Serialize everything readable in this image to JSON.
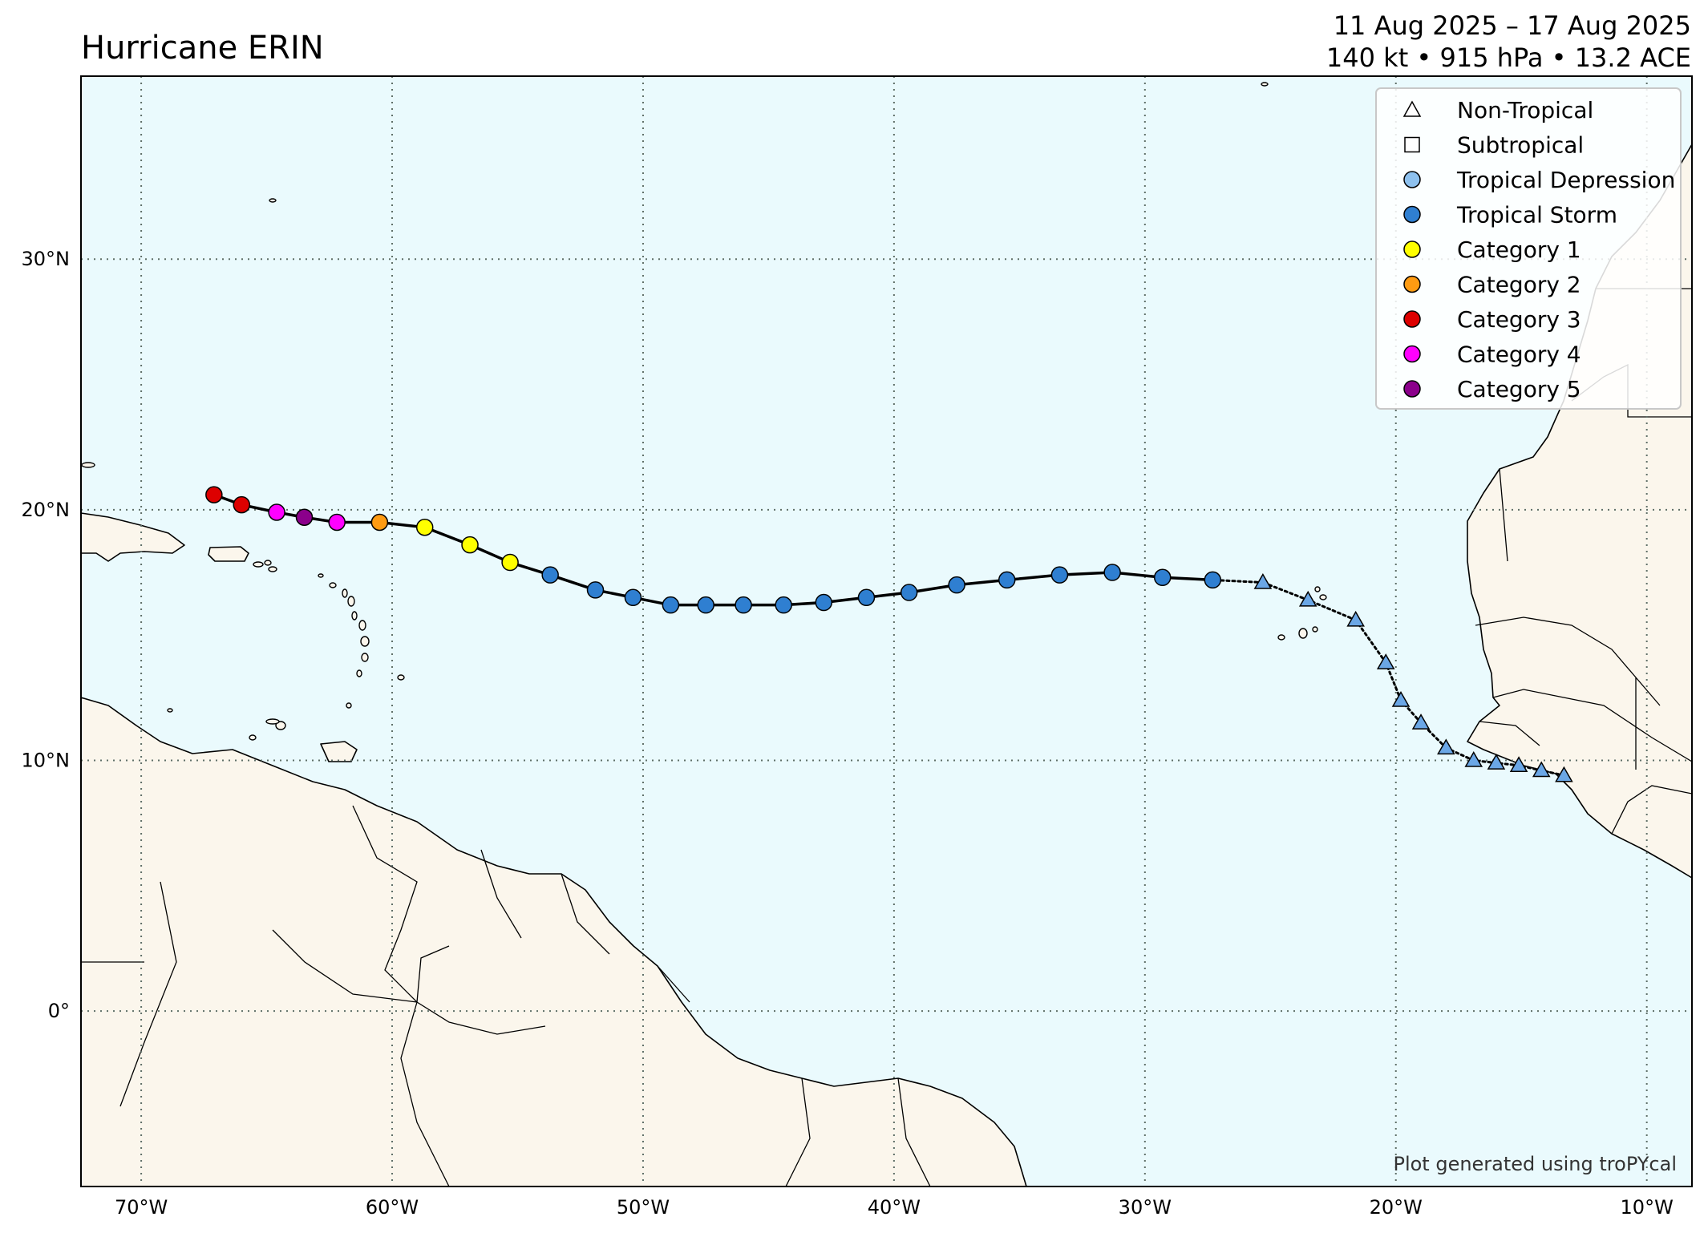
{
  "title": "Hurricane ERIN",
  "date_range": "11 Aug 2025 – 17 Aug 2025",
  "stats": "140 kt • 915 hPa • 13.2 ACE",
  "credit": "Plot generated using troPYcal",
  "colors": {
    "ocean": "#eafafd",
    "land": "#fbf6ec",
    "Non-Tropical": "#6ba7e6",
    "Tropical Depression": "#8ec1ee",
    "Tropical Storm": "#2f7fd1",
    "Category 1": "#ffff00",
    "Category 2": "#ff9b12",
    "Category 3": "#dd0000",
    "Category 4": "#ff00ff",
    "Category 5": "#8b008b"
  },
  "legend": [
    {
      "label": "Non-Tropical",
      "symbol": "triangle"
    },
    {
      "label": "Subtropical",
      "symbol": "square"
    },
    {
      "label": "Tropical Depression",
      "symbol": "circle"
    },
    {
      "label": "Tropical Storm",
      "symbol": "circle"
    },
    {
      "label": "Category 1",
      "symbol": "circle"
    },
    {
      "label": "Category 2",
      "symbol": "circle"
    },
    {
      "label": "Category 3",
      "symbol": "circle"
    },
    {
      "label": "Category 4",
      "symbol": "circle"
    },
    {
      "label": "Category 5",
      "symbol": "circle"
    }
  ],
  "axes": {
    "lon_range": [
      -72.4,
      -8.2
    ],
    "lat_range": [
      -7.0,
      37.3
    ],
    "lon_ticks": [
      {
        "value": -70,
        "label": "70°W"
      },
      {
        "value": -60,
        "label": "60°W"
      },
      {
        "value": -50,
        "label": "50°W"
      },
      {
        "value": -40,
        "label": "40°W"
      },
      {
        "value": -30,
        "label": "30°W"
      },
      {
        "value": -20,
        "label": "20°W"
      },
      {
        "value": -10,
        "label": "10°W"
      }
    ],
    "lat_ticks": [
      {
        "value": 30,
        "label": "30°N"
      },
      {
        "value": 20,
        "label": "20°N"
      },
      {
        "value": 10,
        "label": "10°N"
      },
      {
        "value": 0,
        "label": "0°"
      }
    ],
    "grid": true
  },
  "chart_data": {
    "type": "scatter",
    "x_label": "longitude",
    "y_label": "latitude",
    "track": [
      {
        "lon": -13.3,
        "lat": 9.4,
        "cat": "Non-Tropical"
      },
      {
        "lon": -14.2,
        "lat": 9.6,
        "cat": "Non-Tropical"
      },
      {
        "lon": -15.1,
        "lat": 9.8,
        "cat": "Non-Tropical"
      },
      {
        "lon": -16.0,
        "lat": 9.9,
        "cat": "Non-Tropical"
      },
      {
        "lon": -16.9,
        "lat": 10.0,
        "cat": "Non-Tropical"
      },
      {
        "lon": -18.0,
        "lat": 10.5,
        "cat": "Non-Tropical"
      },
      {
        "lon": -19.0,
        "lat": 11.5,
        "cat": "Non-Tropical"
      },
      {
        "lon": -19.8,
        "lat": 12.4,
        "cat": "Non-Tropical"
      },
      {
        "lon": -20.4,
        "lat": 13.9,
        "cat": "Non-Tropical"
      },
      {
        "lon": -21.6,
        "lat": 15.6,
        "cat": "Non-Tropical"
      },
      {
        "lon": -23.5,
        "lat": 16.4,
        "cat": "Non-Tropical"
      },
      {
        "lon": -25.3,
        "lat": 17.1,
        "cat": "Non-Tropical"
      },
      {
        "lon": -27.3,
        "lat": 17.2,
        "cat": "Tropical Storm"
      },
      {
        "lon": -29.3,
        "lat": 17.3,
        "cat": "Tropical Storm"
      },
      {
        "lon": -31.3,
        "lat": 17.5,
        "cat": "Tropical Storm"
      },
      {
        "lon": -33.4,
        "lat": 17.4,
        "cat": "Tropical Storm"
      },
      {
        "lon": -35.5,
        "lat": 17.2,
        "cat": "Tropical Storm"
      },
      {
        "lon": -37.5,
        "lat": 17.0,
        "cat": "Tropical Storm"
      },
      {
        "lon": -39.4,
        "lat": 16.7,
        "cat": "Tropical Storm"
      },
      {
        "lon": -41.1,
        "lat": 16.5,
        "cat": "Tropical Storm"
      },
      {
        "lon": -42.8,
        "lat": 16.3,
        "cat": "Tropical Storm"
      },
      {
        "lon": -44.4,
        "lat": 16.2,
        "cat": "Tropical Storm"
      },
      {
        "lon": -46.0,
        "lat": 16.2,
        "cat": "Tropical Storm"
      },
      {
        "lon": -47.5,
        "lat": 16.2,
        "cat": "Tropical Storm"
      },
      {
        "lon": -48.9,
        "lat": 16.2,
        "cat": "Tropical Storm"
      },
      {
        "lon": -50.4,
        "lat": 16.5,
        "cat": "Tropical Storm"
      },
      {
        "lon": -51.9,
        "lat": 16.8,
        "cat": "Tropical Storm"
      },
      {
        "lon": -53.7,
        "lat": 17.4,
        "cat": "Tropical Storm"
      },
      {
        "lon": -55.3,
        "lat": 17.9,
        "cat": "Category 1"
      },
      {
        "lon": -56.9,
        "lat": 18.6,
        "cat": "Category 1"
      },
      {
        "lon": -58.7,
        "lat": 19.3,
        "cat": "Category 1"
      },
      {
        "lon": -60.5,
        "lat": 19.5,
        "cat": "Category 2"
      },
      {
        "lon": -62.2,
        "lat": 19.5,
        "cat": "Category 4"
      },
      {
        "lon": -63.5,
        "lat": 19.7,
        "cat": "Category 5"
      },
      {
        "lon": -64.6,
        "lat": 19.9,
        "cat": "Category 4"
      },
      {
        "lon": -66.0,
        "lat": 20.2,
        "cat": "Category 3"
      },
      {
        "lon": -67.1,
        "lat": 20.6,
        "cat": "Category 3"
      }
    ]
  }
}
